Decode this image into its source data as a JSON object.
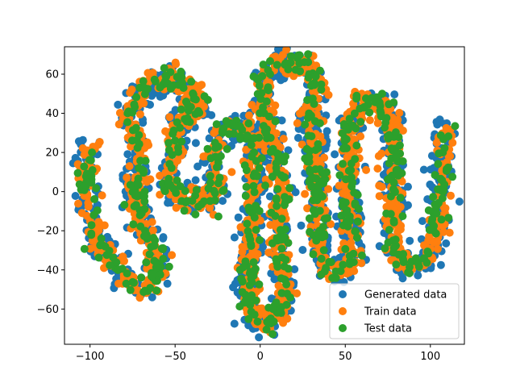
{
  "chart_data": {
    "type": "scatter",
    "title": "",
    "xlabel": "",
    "ylabel": "",
    "xlim": [
      -115,
      120
    ],
    "ylim": [
      -78,
      74
    ],
    "xticks": [
      -100,
      -50,
      0,
      50,
      100
    ],
    "xtick_labels": [
      "−100",
      "−50",
      "0",
      "50",
      "100"
    ],
    "yticks": [
      -60,
      -40,
      -20,
      0,
      20,
      40,
      60
    ],
    "ytick_labels": [
      "−60",
      "−40",
      "−20",
      "0",
      "20",
      "40",
      "60"
    ],
    "grid": false,
    "legend_position": "lower-right",
    "path": [
      [
        -102,
        22
      ],
      [
        -102,
        0
      ],
      [
        -98,
        -20
      ],
      [
        -92,
        -32
      ],
      [
        -80,
        -42
      ],
      [
        -72,
        -50
      ],
      [
        -65,
        -48
      ],
      [
        -60,
        -38
      ],
      [
        -62,
        -25
      ],
      [
        -70,
        -18
      ],
      [
        -72,
        -8
      ],
      [
        -74,
        5
      ],
      [
        -70,
        8
      ],
      [
        -72,
        25
      ],
      [
        -78,
        38
      ],
      [
        -72,
        50
      ],
      [
        -62,
        55
      ],
      [
        -54,
        57
      ],
      [
        -49,
        60
      ],
      [
        -46,
        52
      ],
      [
        -42,
        48
      ],
      [
        -37,
        50
      ],
      [
        -37,
        40
      ],
      [
        -46,
        38
      ],
      [
        -50,
        30
      ],
      [
        -51,
        18
      ],
      [
        -54,
        8
      ],
      [
        -50,
        -2
      ],
      [
        -42,
        -5
      ],
      [
        -35,
        -2
      ],
      [
        -28,
        -5
      ],
      [
        -25,
        5
      ],
      [
        -28,
        15
      ],
      [
        -24,
        30
      ],
      [
        -18,
        32
      ],
      [
        -10,
        33
      ],
      [
        -5,
        30
      ],
      [
        -2,
        20
      ],
      [
        -3,
        5
      ],
      [
        -5,
        -15
      ],
      [
        -6,
        -30
      ],
      [
        -8,
        -50
      ],
      [
        -4,
        -65
      ],
      [
        4,
        -68
      ],
      [
        12,
        -62
      ],
      [
        14,
        -50
      ],
      [
        12,
        -35
      ],
      [
        10,
        -20
      ],
      [
        12,
        -5
      ],
      [
        12,
        5
      ],
      [
        8,
        18
      ],
      [
        5,
        30
      ],
      [
        2,
        45
      ],
      [
        2,
        58
      ],
      [
        10,
        65
      ],
      [
        20,
        66
      ],
      [
        30,
        63
      ],
      [
        34,
        55
      ],
      [
        32,
        45
      ],
      [
        28,
        40
      ],
      [
        30,
        28
      ],
      [
        32,
        15
      ],
      [
        34,
        0
      ],
      [
        35,
        -15
      ],
      [
        36,
        -35
      ],
      [
        40,
        -42
      ],
      [
        48,
        -40
      ],
      [
        54,
        -35
      ],
      [
        54,
        -20
      ],
      [
        52,
        -5
      ],
      [
        52,
        15
      ],
      [
        52,
        30
      ],
      [
        55,
        40
      ],
      [
        62,
        45
      ],
      [
        70,
        47
      ],
      [
        75,
        40
      ],
      [
        78,
        30
      ],
      [
        78,
        10
      ],
      [
        78,
        -10
      ],
      [
        78,
        -30
      ],
      [
        84,
        -38
      ],
      [
        95,
        -38
      ],
      [
        100,
        -30
      ],
      [
        105,
        -20
      ],
      [
        106,
        0
      ],
      [
        108,
        20
      ],
      [
        108,
        32
      ]
    ],
    "series": [
      {
        "name": "Generated data",
        "color": "#1f77b4",
        "spread": 5.0,
        "seed": 11,
        "count": 1400
      },
      {
        "name": "Train data",
        "color": "#ff7f0e",
        "spread": 4.0,
        "seed": 23,
        "count": 1400
      },
      {
        "name": "Test data",
        "color": "#2ca02c",
        "spread": 4.0,
        "seed": 37,
        "count": 700
      }
    ]
  }
}
